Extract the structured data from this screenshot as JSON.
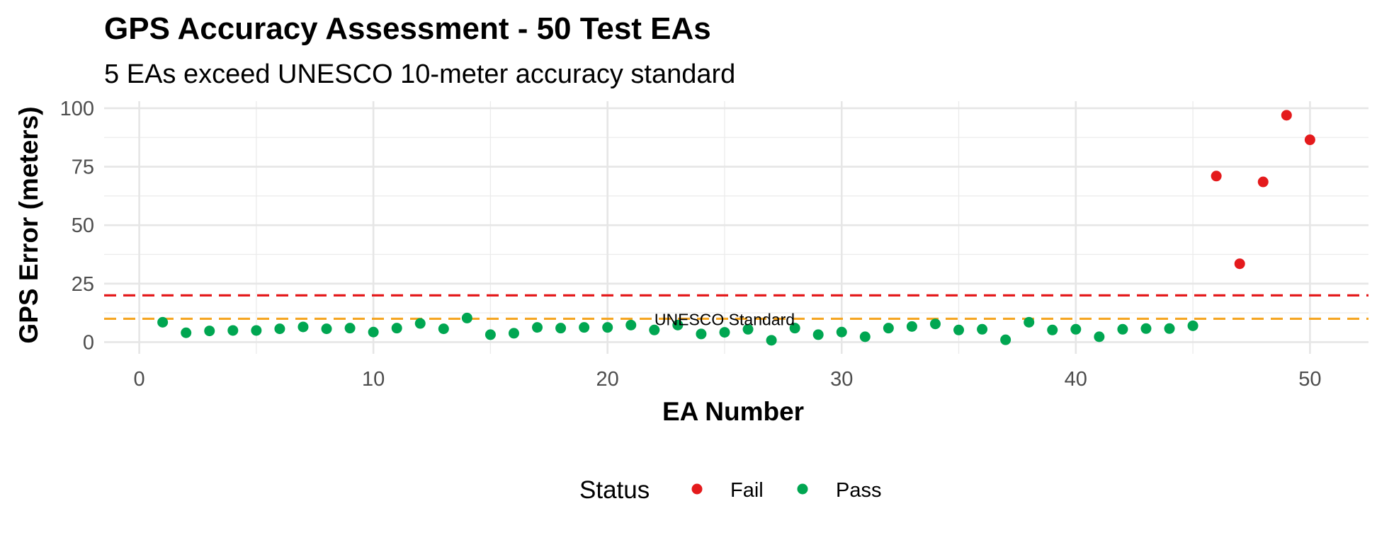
{
  "chart_data": {
    "type": "scatter",
    "title": "GPS Accuracy Assessment - 50 Test EAs",
    "subtitle": "5 EAs exceed UNESCO 10-meter accuracy standard",
    "xlabel": "EA Number",
    "ylabel": "GPS Error (meters)",
    "xlim": [
      -1.5,
      52.5
    ],
    "ylim": [
      -5,
      103
    ],
    "x_ticks": [
      0,
      10,
      20,
      30,
      40,
      50
    ],
    "y_ticks": [
      0,
      25,
      50,
      75,
      100
    ],
    "grid": true,
    "legend": {
      "title": "Status",
      "position": "bottom",
      "items": [
        "Fail",
        "Pass"
      ]
    },
    "colors": {
      "Fail": "#e41a1c",
      "Pass": "#00a651",
      "unesco_line": "#f5a623",
      "threshold_line": "#e41a1c"
    },
    "reference_lines": [
      {
        "name": "unesco",
        "y": 10,
        "color": "#f5a623",
        "label": "UNESCO Standard",
        "label_x": 25
      },
      {
        "name": "threshold",
        "y": 20,
        "color": "#e41a1c",
        "label": ""
      }
    ],
    "series": [
      {
        "name": "Pass",
        "points": [
          [
            1,
            8.5
          ],
          [
            2,
            4
          ],
          [
            3,
            4.8
          ],
          [
            4,
            5
          ],
          [
            5,
            5
          ],
          [
            6,
            5.7
          ],
          [
            7,
            6.5
          ],
          [
            8,
            5.7
          ],
          [
            9,
            6
          ],
          [
            10,
            4.3
          ],
          [
            11,
            6
          ],
          [
            12,
            8
          ],
          [
            13,
            5.7
          ],
          [
            14,
            10.3
          ],
          [
            15,
            3.2
          ],
          [
            16,
            3.8
          ],
          [
            17,
            6.3
          ],
          [
            18,
            6
          ],
          [
            19,
            6.3
          ],
          [
            20,
            6.3
          ],
          [
            21,
            7.3
          ],
          [
            22,
            5.2
          ],
          [
            23,
            7.3
          ],
          [
            24,
            3.5
          ],
          [
            25,
            4.2
          ],
          [
            26,
            5.5
          ],
          [
            27,
            0.8
          ],
          [
            28,
            6
          ],
          [
            29,
            3.2
          ],
          [
            30,
            4.3
          ],
          [
            31,
            2.3
          ],
          [
            32,
            6
          ],
          [
            33,
            6.7
          ],
          [
            34,
            7.8
          ],
          [
            35,
            5.2
          ],
          [
            36,
            5.5
          ],
          [
            37,
            1
          ],
          [
            38,
            8.5
          ],
          [
            39,
            5.2
          ],
          [
            40,
            5.5
          ],
          [
            41,
            2.3
          ],
          [
            42,
            5.5
          ],
          [
            43,
            5.8
          ],
          [
            44,
            5.8
          ],
          [
            45,
            7
          ]
        ]
      },
      {
        "name": "Fail",
        "points": [
          [
            46,
            71
          ],
          [
            47,
            33.5
          ],
          [
            48,
            68.5
          ],
          [
            49,
            97
          ],
          [
            50,
            86.5
          ]
        ]
      }
    ]
  }
}
